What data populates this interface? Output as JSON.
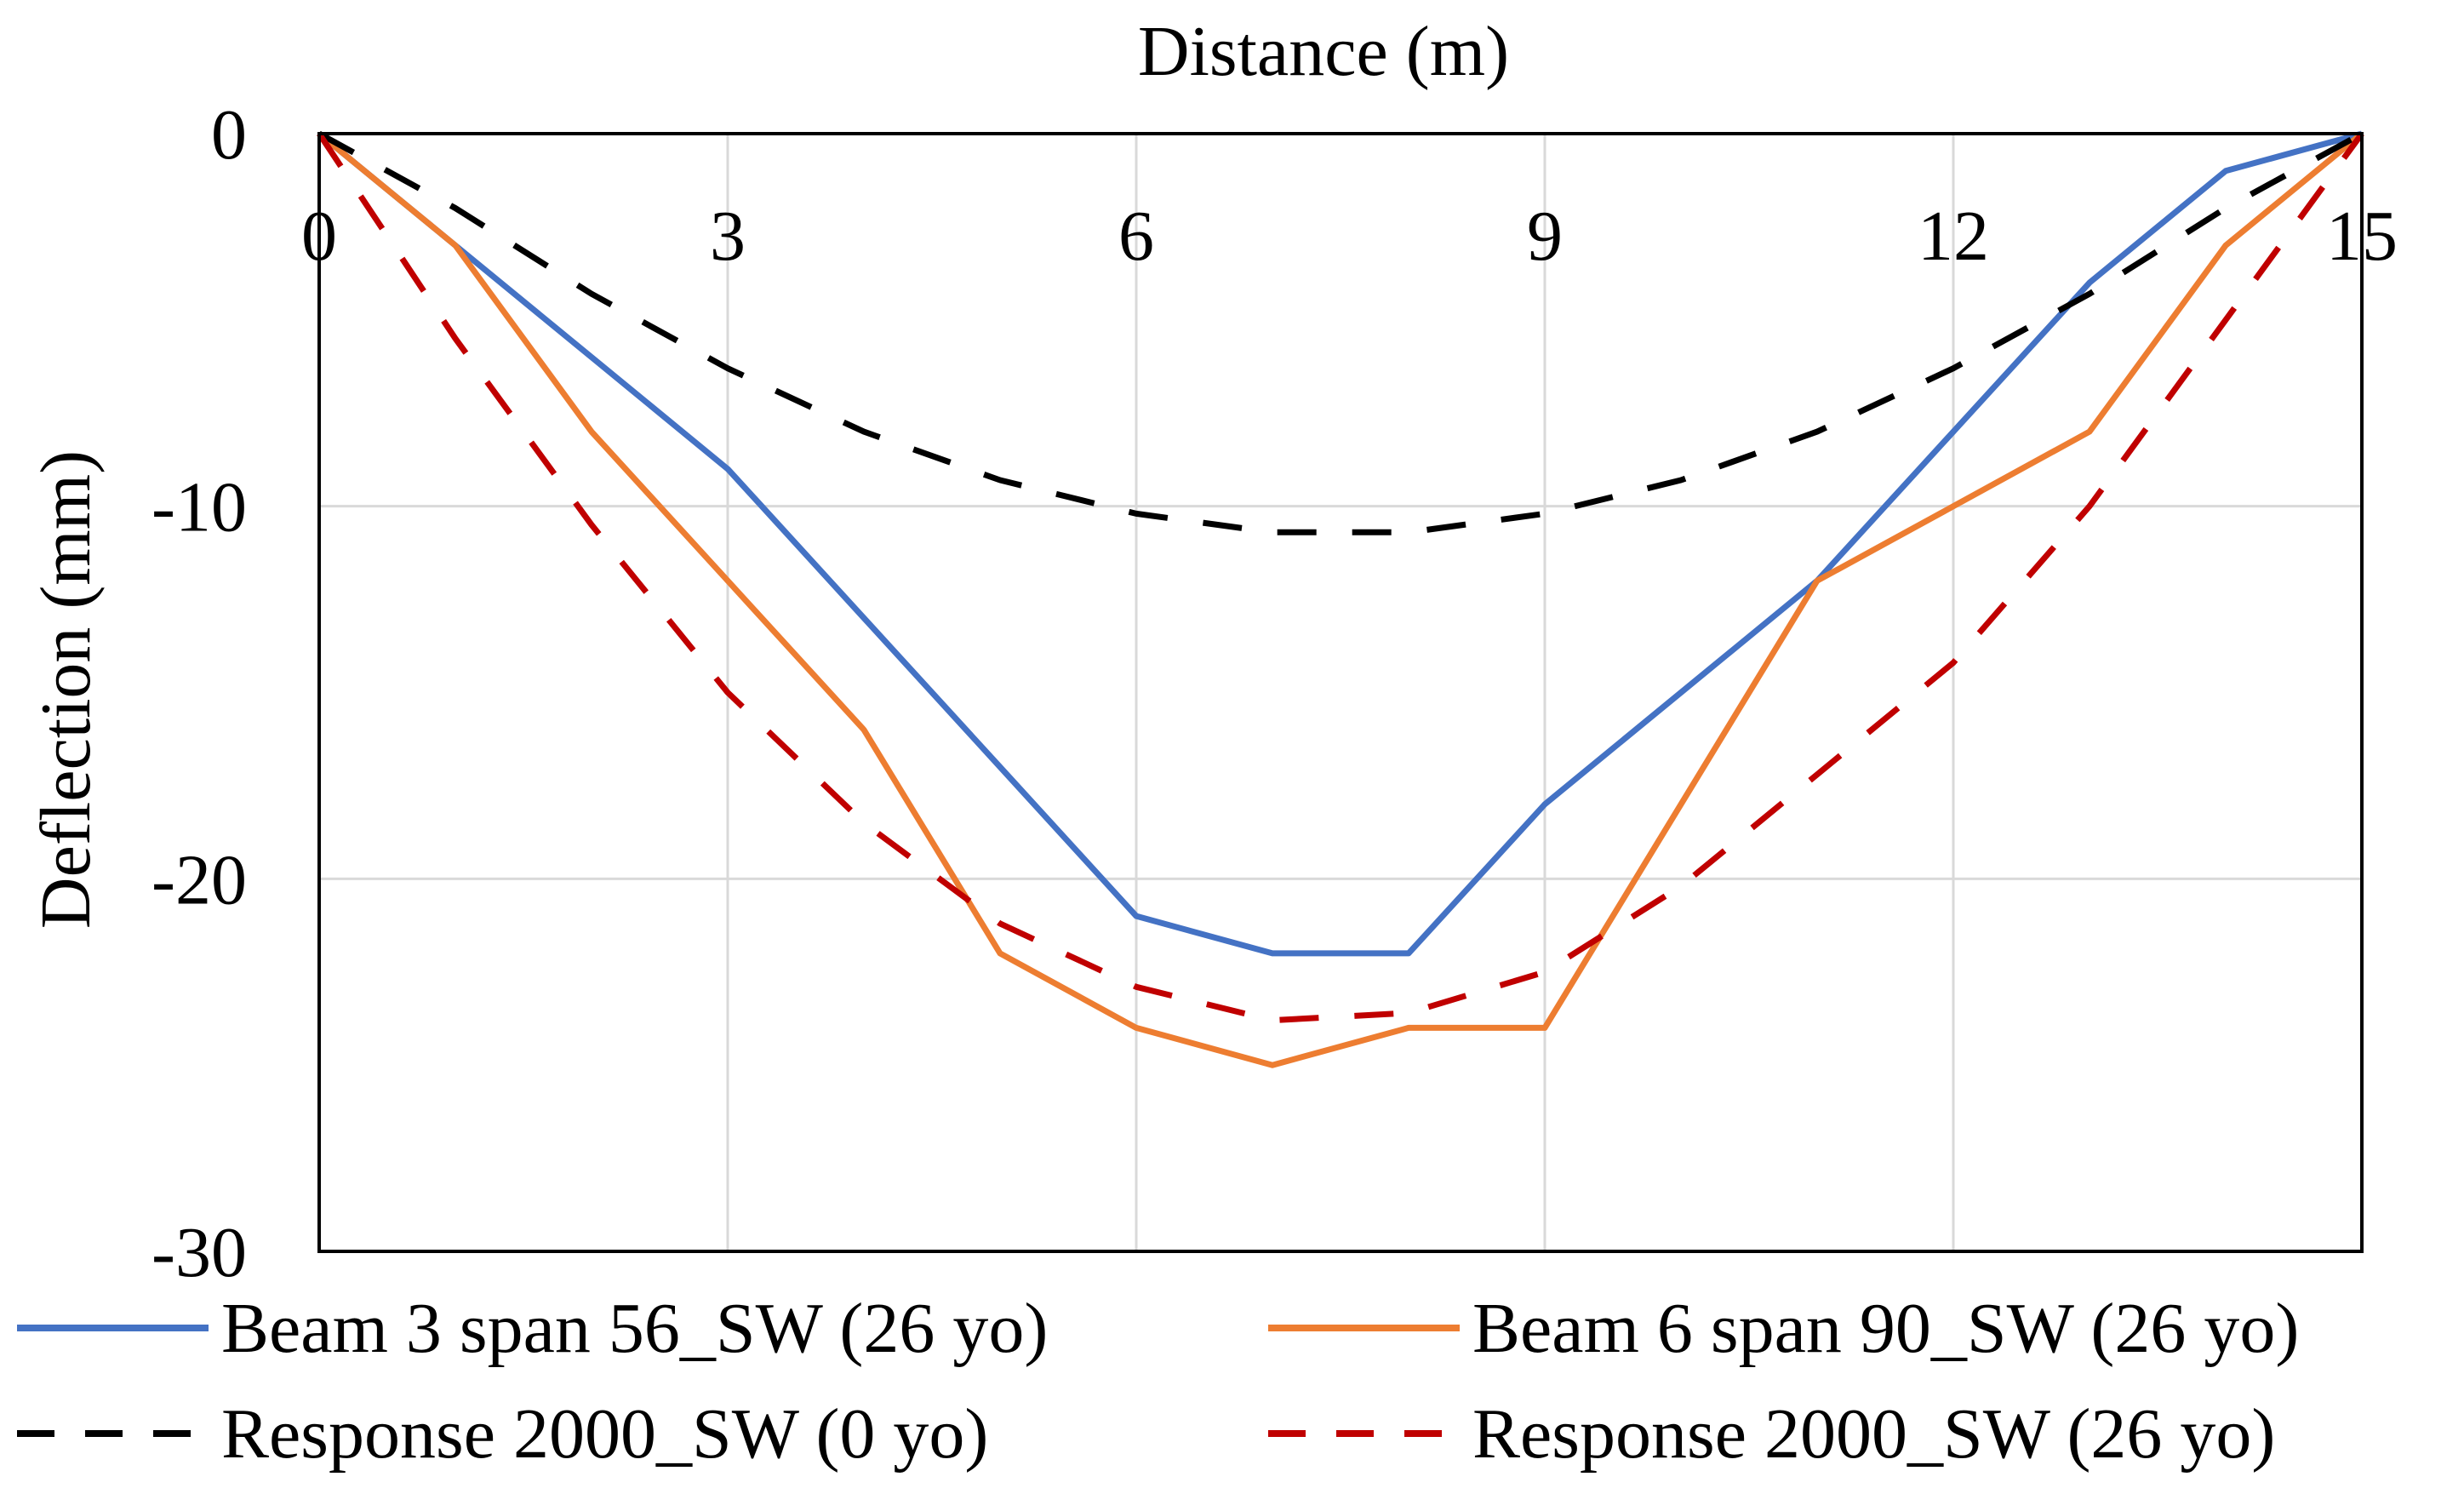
{
  "chart_data": {
    "type": "line",
    "xlabel": "Distance (m)",
    "ylabel": "Deflection (mm)",
    "xlim": [
      0,
      15
    ],
    "ylim": [
      -30,
      0
    ],
    "x_ticks": [
      0,
      3,
      6,
      9,
      12,
      15
    ],
    "y_ticks": [
      0,
      -10,
      -20,
      -30
    ],
    "x_axis_position": "top",
    "grid": true,
    "legend_position": "bottom",
    "series": [
      {
        "name": "Beam 3 span 56_SW (26 yo)",
        "color": "#4472C4",
        "style": "solid",
        "x": [
          0,
          1,
          2,
          3,
          4,
          5,
          6,
          7,
          8,
          9,
          10,
          11,
          12,
          13,
          14,
          15
        ],
        "y": [
          0,
          -3,
          -6,
          -9,
          -13,
          -17,
          -21,
          -22,
          -22,
          -18,
          -15,
          -12,
          -8,
          -4,
          -1,
          0
        ]
      },
      {
        "name": "Beam 6 span 90_SW (26 yo)",
        "color": "#ED7D31",
        "style": "solid",
        "x": [
          0,
          1,
          2,
          3,
          4,
          5,
          6,
          7,
          8,
          9,
          10,
          11,
          12,
          13,
          14,
          15
        ],
        "y": [
          0,
          -3,
          -8,
          -12,
          -16,
          -22,
          -24,
          -25,
          -24,
          -24,
          -18,
          -12,
          -10,
          -8,
          -3,
          0
        ]
      },
      {
        "name": "Response 2000_SW (0 yo)",
        "color": "#000000",
        "style": "dashed",
        "x": [
          0,
          1,
          2,
          3,
          4,
          5,
          6,
          7,
          8,
          9,
          10,
          11,
          12,
          13,
          14,
          15
        ],
        "y": [
          0,
          -2,
          -4.3,
          -6.3,
          -8,
          -9.3,
          -10.2,
          -10.7,
          -10.7,
          -10.2,
          -9.3,
          -8,
          -6.3,
          -4.3,
          -2,
          0
        ]
      },
      {
        "name": "Response 2000_SW (26 yo)",
        "color": "#C00000",
        "style": "dashed",
        "x": [
          0,
          1,
          2,
          3,
          4,
          5,
          6,
          7,
          8,
          9,
          10,
          11,
          12,
          13,
          14,
          15
        ],
        "y": [
          0,
          -5.5,
          -10.5,
          -15,
          -18.5,
          -21.2,
          -22.9,
          -23.8,
          -23.6,
          -22.5,
          -20.2,
          -17.2,
          -14.2,
          -10,
          -5,
          0
        ]
      }
    ]
  }
}
